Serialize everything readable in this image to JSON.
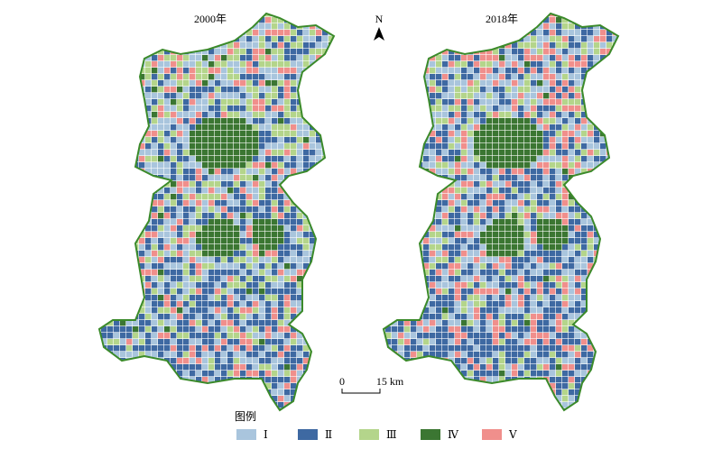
{
  "maps": [
    {
      "title": "2000年"
    },
    {
      "title": "2018年"
    }
  ],
  "north_arrow": "N",
  "scale_bar": {
    "start": "0",
    "end": "15 km"
  },
  "legend": {
    "title": "图例",
    "items": [
      {
        "label": "Ⅰ",
        "color": "#a9c5dd"
      },
      {
        "label": "Ⅱ",
        "color": "#3e69a2"
      },
      {
        "label": "Ⅲ",
        "color": "#b4d58b"
      },
      {
        "label": "Ⅳ",
        "color": "#3b7632"
      },
      {
        "label": "Ⅴ",
        "color": "#f08f8c"
      }
    ]
  }
}
